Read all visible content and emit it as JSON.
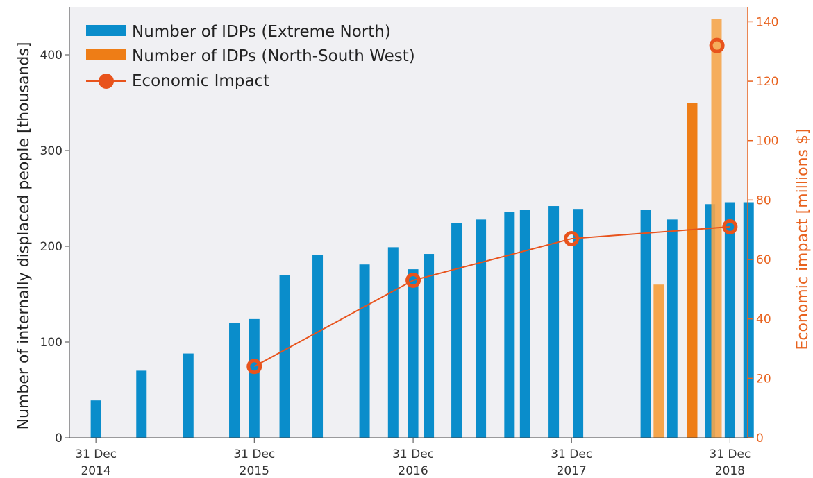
{
  "chart_data": {
    "type": "bar",
    "title": "",
    "xlabel": "",
    "ylabel": "Number of internally displaced people [thousands]",
    "y2label": "Economic impact [millions $]",
    "ylim": [
      0,
      450
    ],
    "y2lim": [
      0,
      145
    ],
    "yticks": [
      0,
      100,
      200,
      300,
      400
    ],
    "y2ticks": [
      0,
      20,
      40,
      60,
      80,
      100,
      120,
      140
    ],
    "grid": false,
    "legend_position": "top-left",
    "x_range": [
      "2014-10-31",
      "2019-02-10"
    ],
    "x_ticks": [
      {
        "date": "2014-12-31",
        "line1": "31 Dec",
        "line2": "2014"
      },
      {
        "date": "2015-12-31",
        "line1": "31 Dec",
        "line2": "2015"
      },
      {
        "date": "2016-12-31",
        "line1": "31 Dec",
        "line2": "2016"
      },
      {
        "date": "2017-12-31",
        "line1": "31 Dec",
        "line2": "2017"
      },
      {
        "date": "2018-12-31",
        "line1": "31 Dec",
        "line2": "2018"
      }
    ],
    "colors": {
      "extreme_north": "#0a8dcb",
      "north_south_west": "#f5a54b",
      "north_south_west_dark": "#ee7d16",
      "economic": "#e8531c",
      "plot_bg": "#f0f0f3",
      "right_axis": "#e8621e"
    },
    "series": [
      {
        "name": "Number of IDPs (Extreme North)",
        "kind": "bar",
        "axis": "left",
        "points": [
          {
            "date": "2014-12-31",
            "value": 39
          },
          {
            "date": "2015-04-15",
            "value": 70
          },
          {
            "date": "2015-08-01",
            "value": 88
          },
          {
            "date": "2015-11-15",
            "value": 120
          },
          {
            "date": "2015-12-31",
            "value": 124
          },
          {
            "date": "2016-03-10",
            "value": 170
          },
          {
            "date": "2016-05-25",
            "value": 191
          },
          {
            "date": "2016-09-10",
            "value": 181
          },
          {
            "date": "2016-11-15",
            "value": 199
          },
          {
            "date": "2016-12-31",
            "value": 176
          },
          {
            "date": "2017-02-05",
            "value": 192
          },
          {
            "date": "2017-04-10",
            "value": 224
          },
          {
            "date": "2017-06-05",
            "value": 228
          },
          {
            "date": "2017-08-10",
            "value": 236
          },
          {
            "date": "2017-09-15",
            "value": 238
          },
          {
            "date": "2017-11-20",
            "value": 242
          },
          {
            "date": "2018-01-15",
            "value": 239
          },
          {
            "date": "2018-06-20",
            "value": 238
          },
          {
            "date": "2018-08-20",
            "value": 228
          },
          {
            "date": "2018-11-15",
            "value": 244
          },
          {
            "date": "2018-12-31",
            "value": 246
          },
          {
            "date": "2019-02-12",
            "value": 246
          }
        ]
      },
      {
        "name": "Number of IDPs (North-South West)",
        "kind": "bar",
        "axis": "left",
        "points": [
          {
            "date": "2018-07-20",
            "value": 160
          },
          {
            "date": "2018-10-05",
            "value": 350
          },
          {
            "date": "2018-11-30",
            "value": 437
          }
        ]
      },
      {
        "name": "Economic Impact",
        "kind": "line",
        "axis": "right",
        "points": [
          {
            "date": "2015-12-31",
            "value": 24
          },
          {
            "date": "2016-12-31",
            "value": 53
          },
          {
            "date": "2017-12-31",
            "value": 67
          },
          {
            "date": "2018-12-31",
            "value": 71
          },
          {
            "date": "2018-12-01",
            "value": 132,
            "standalone": true
          }
        ]
      }
    ]
  }
}
